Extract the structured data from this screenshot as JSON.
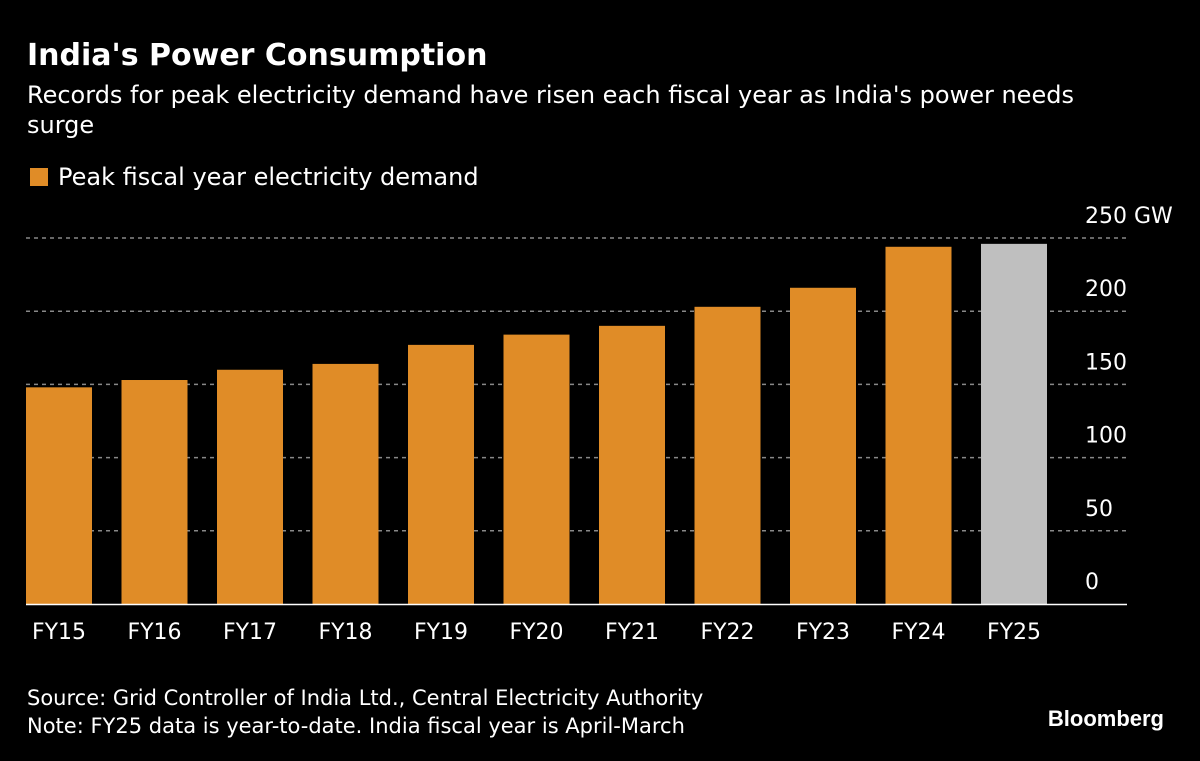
{
  "chart_data": {
    "type": "bar",
    "title": "India's Power Consumption",
    "subtitle": "Records for peak electricity demand have risen each fiscal year as India's power needs surge",
    "legend": [
      {
        "name": "Peak fiscal year electricity demand",
        "color": "#e08c27"
      }
    ],
    "legend_placement": "top-left",
    "categories": [
      "FY15",
      "FY16",
      "FY17",
      "FY18",
      "FY19",
      "FY20",
      "FY21",
      "FY22",
      "FY23",
      "FY24",
      "FY25"
    ],
    "series": [
      {
        "name": "Peak fiscal year electricity demand",
        "values": [
          148,
          153,
          160,
          164,
          177,
          184,
          190,
          203,
          216,
          244,
          246
        ]
      }
    ],
    "bar_colors": [
      "#e08c27",
      "#e08c27",
      "#e08c27",
      "#e08c27",
      "#e08c27",
      "#e08c27",
      "#e08c27",
      "#e08c27",
      "#e08c27",
      "#e08c27",
      "#bfbfbf"
    ],
    "y_ticks": [
      "0",
      "50",
      "100",
      "150",
      "200",
      "250 GW"
    ],
    "y_tick_values": [
      0,
      50,
      100,
      150,
      200,
      250
    ],
    "ylim": [
      0,
      250
    ],
    "y_axis_side": "right",
    "grid": true,
    "xlabel": "",
    "ylabel": ""
  },
  "footer": {
    "source": "Source: Grid Controller of India Ltd., Central Electricity Authority",
    "note": "Note: FY25 data is year-to-date. India fiscal year is April-March",
    "logo": "Bloomberg"
  }
}
